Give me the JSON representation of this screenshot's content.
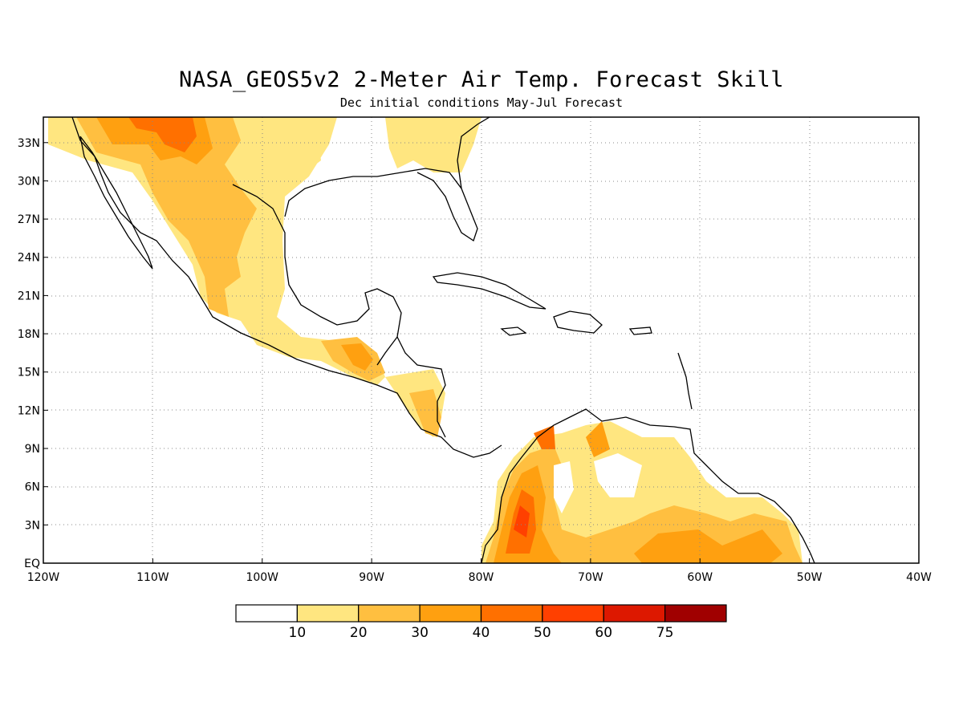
{
  "title": "NASA_GEOS5v2 2-Meter Air Temp. Forecast Skill",
  "subtitle": "Dec initial conditions  May-Jul Forecast",
  "map": {
    "lon_range": [
      -120,
      -40
    ],
    "lat_range": [
      0,
      35
    ],
    "lon_ticks": [
      "120W",
      "110W",
      "100W",
      "90W",
      "80W",
      "70W",
      "60W",
      "50W",
      "40W"
    ],
    "lat_ticks": [
      "EQ",
      "3N",
      "6N",
      "9N",
      "12N",
      "15N",
      "18N",
      "21N",
      "24N",
      "27N",
      "30N",
      "33N"
    ],
    "grid": "dotted"
  },
  "colorbar": {
    "labels": [
      "10",
      "20",
      "30",
      "40",
      "50",
      "60",
      "75"
    ],
    "colors": [
      "#ffffff",
      "#ffe680",
      "#ffbf40",
      "#ffa010",
      "#ff7000",
      "#ff4000",
      "#dd1800",
      "#a00000"
    ]
  }
}
